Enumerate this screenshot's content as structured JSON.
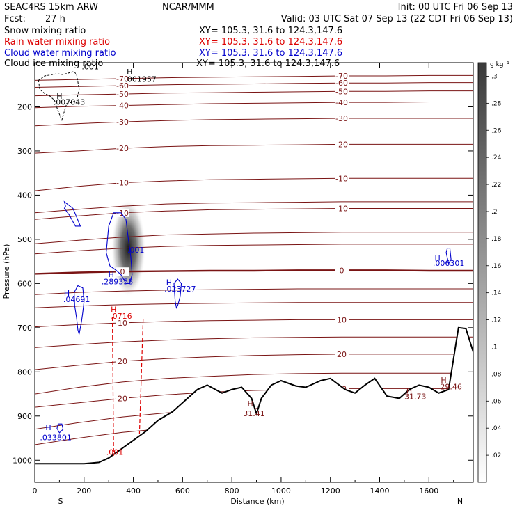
{
  "header": {
    "model": "SEAC4RS 15km ARW",
    "center": "NCAR/MMM",
    "init": "Init: 00 UTC Fri 06 Sep 13",
    "fcst_label": "Fcst:",
    "fcst_value": "27 h",
    "valid": "Valid: 03 UTC Sat 07 Sep 13 (22 CDT Fri 06 Sep 13)"
  },
  "fields": [
    {
      "name": "Snow mixing ratio",
      "xy": "XY=  105.3, 31.6 to 124.3,147.6",
      "color": "#000000"
    },
    {
      "name": "Rain water mixing ratio",
      "xy": "XY= 105.3, 31.6 to 124.3,147.6",
      "color": "#dd0000"
    },
    {
      "name": "Cloud water mixing ratio",
      "xy": "XY= 105.3, 31.6 to 124.3,147.6",
      "color": "#0000cc"
    },
    {
      "name": "Cloud ice mixing ratio",
      "xy": "XY= 105.3, 31.6 to 124.3,147.6",
      "color": "#000000"
    }
  ],
  "colors": {
    "temperature": "#7a1414",
    "zero_isotherm": "#7a1414",
    "terrain": "#000000",
    "rain": "#dd0000",
    "cloud_water": "#0000cc",
    "snow": "#000000"
  },
  "chart_data": {
    "type": "cross-section",
    "xlabel": "Distance (km)",
    "ylabel": "Pressure (hPa)",
    "xlim": [
      0,
      1780
    ],
    "ylim": [
      1050,
      100
    ],
    "x_ticks": [
      "0",
      "200",
      "400",
      "600",
      "800",
      "1000",
      "1200",
      "1400",
      "1600"
    ],
    "x_tick_values": [
      0,
      200,
      400,
      600,
      800,
      1000,
      1200,
      1400,
      1600
    ],
    "y_ticks": [
      "200",
      "300",
      "400",
      "500",
      "600",
      "700",
      "800",
      "900",
      "1000"
    ],
    "y_tick_values": [
      200,
      300,
      400,
      500,
      600,
      700,
      800,
      900,
      1000
    ],
    "end_labels": {
      "left": "S",
      "right": "N"
    },
    "colorbar": {
      "unit": "g kg⁻¹",
      "labels": [
        ".3",
        ".28",
        ".26",
        ".24",
        ".22",
        ".2",
        ".18",
        ".16",
        ".14",
        ".12",
        ".1",
        ".08",
        ".06",
        ".04",
        ".02"
      ],
      "min": 0,
      "max": 0.31
    },
    "temperature_isotherms": [
      {
        "label": "-70",
        "p": [
          140,
          138,
          136,
          134,
          133,
          132,
          131,
          130,
          130,
          129,
          129
        ]
      },
      {
        "label": "-60",
        "p": [
          156,
          154,
          152,
          150,
          149,
          148,
          147,
          146,
          146,
          145,
          145
        ]
      },
      {
        "label": "-50",
        "p": [
          175,
          173,
          171,
          169,
          168,
          167,
          166,
          165,
          165,
          164,
          164
        ]
      },
      {
        "label": "-40",
        "p": [
          202,
          199,
          197,
          195,
          193,
          192,
          191,
          190,
          190,
          189,
          189
        ]
      },
      {
        "label": "-30",
        "p": [
          243,
          238,
          234,
          231,
          229,
          228,
          227,
          226,
          226,
          226,
          226
        ]
      },
      {
        "label": "-20",
        "p": [
          305,
          300,
          294,
          290,
          288,
          287,
          286,
          285,
          285,
          285,
          285
        ]
      },
      {
        "label": "-10",
        "p": [
          390,
          380,
          372,
          368,
          365,
          364,
          363,
          362,
          362,
          362,
          362
        ]
      },
      {
        "label": "",
        "p": [
          440,
          432,
          425,
          420,
          418,
          417,
          416,
          415,
          415,
          415,
          415
        ]
      },
      {
        "label": "-10",
        "p": [
          455,
          447,
          440,
          436,
          433,
          432,
          431,
          430,
          430,
          430,
          430
        ]
      },
      {
        "label": "",
        "p": [
          510,
          502,
          495,
          490,
          488,
          486,
          485,
          484,
          484,
          484,
          484
        ]
      },
      {
        "label": "",
        "p": [
          533,
          526,
          520,
          516,
          514,
          513,
          512,
          511,
          511,
          511,
          511
        ]
      },
      {
        "label": "0",
        "p": [
          578,
          575,
          573,
          572,
          571,
          571,
          570,
          570,
          570,
          571,
          571
        ],
        "bold": true
      },
      {
        "label": "",
        "p": [
          625,
          620,
          617,
          615,
          614,
          613,
          612,
          612,
          612,
          612,
          612
        ]
      },
      {
        "label": "",
        "p": [
          655,
          651,
          648,
          646,
          645,
          644,
          643,
          643,
          643,
          643,
          643
        ]
      },
      {
        "label": "10",
        "p": [
          698,
          693,
          689,
          686,
          684,
          683,
          682,
          682,
          682,
          682,
          682
        ]
      },
      {
        "label": "",
        "p": [
          745,
          738,
          732,
          728,
          725,
          723,
          722,
          721,
          721,
          721,
          721
        ]
      },
      {
        "label": "20",
        "p": [
          795,
          785,
          776,
          770,
          766,
          763,
          761,
          760,
          760,
          760,
          760
        ]
      },
      {
        "label": "",
        "p": [
          850,
          835,
          823,
          815,
          810,
          806,
          804,
          803,
          803,
          803,
          803
        ]
      },
      {
        "label": "20",
        "p": [
          880,
          870,
          860,
          852,
          846,
          842,
          840,
          838,
          838,
          838,
          838
        ]
      },
      {
        "label": "",
        "p": [
          930,
          915,
          902,
          893,
          887,
          883,
          880,
          879,
          879,
          879,
          879
        ]
      },
      {
        "label": "",
        "p": [
          965,
          950,
          937,
          928,
          922,
          918,
          915,
          914,
          914,
          914,
          914
        ]
      }
    ],
    "isotherm_x": [
      0,
      178,
      356,
      534,
      712,
      890,
      1068,
      1246,
      1424,
      1602,
      1780
    ],
    "terrain": {
      "x": [
        0,
        100,
        200,
        260,
        300,
        350,
        400,
        450,
        500,
        560,
        620,
        660,
        700,
        760,
        800,
        840,
        880,
        900,
        920,
        960,
        1000,
        1060,
        1100,
        1160,
        1200,
        1260,
        1300,
        1340,
        1380,
        1430,
        1480,
        1520,
        1560,
        1600,
        1640,
        1680,
        1720,
        1750,
        1780
      ],
      "p": [
        1008,
        1008,
        1008,
        1005,
        995,
        975,
        955,
        935,
        910,
        890,
        860,
        840,
        830,
        848,
        840,
        835,
        860,
        895,
        860,
        830,
        820,
        832,
        835,
        820,
        815,
        840,
        848,
        830,
        815,
        855,
        860,
        840,
        830,
        835,
        848,
        840,
        700,
        702,
        755
      ]
    },
    "snow_contour": {
      "x": [
        15,
        40,
        60,
        90,
        115,
        145,
        160,
        170,
        180,
        170,
        150,
        130,
        120,
        110,
        95,
        80,
        60,
        40,
        20,
        15
      ],
      "p": [
        140,
        130,
        128,
        125,
        127,
        122,
        120,
        128,
        160,
        185,
        190,
        192,
        210,
        230,
        210,
        185,
        175,
        170,
        160,
        140
      ]
    },
    "rain_lines": [
      {
        "x": [
          315,
          320
        ],
        "p": [
          675,
          990
        ]
      },
      {
        "x": [
          440,
          425
        ],
        "p": [
          680,
          940
        ]
      }
    ],
    "cloud_water_contours": [
      {
        "x": [
          290,
          300,
          320,
          350,
          370,
          380,
          390,
          395,
          385,
          370,
          350,
          330,
          305,
          290
        ],
        "p": [
          530,
          470,
          440,
          440,
          455,
          500,
          540,
          580,
          600,
          600,
          580,
          570,
          560,
          530
        ]
      },
      {
        "x": [
          160,
          175,
          195,
          200,
          195,
          190,
          185,
          180,
          175,
          170,
          162,
          160
        ],
        "p": [
          620,
          605,
          610,
          640,
          665,
          685,
          700,
          715,
          705,
          680,
          650,
          620
        ]
      },
      {
        "x": [
          565,
          580,
          595,
          590,
          580,
          575,
          570,
          565
        ],
        "p": [
          600,
          590,
          600,
          630,
          650,
          655,
          640,
          600
        ]
      },
      {
        "x": [
          120,
          155,
          185,
          165,
          140,
          120,
          125,
          120
        ],
        "p": [
          415,
          430,
          470,
          470,
          445,
          430,
          425,
          415
        ]
      },
      {
        "x": [
          90,
          95,
          110,
          115,
          100,
          90
        ],
        "p": [
          928,
          918,
          918,
          930,
          938,
          928
        ]
      },
      {
        "x": [
          1670,
          1675,
          1685,
          1690,
          1680,
          1670
        ],
        "p": [
          530,
          520,
          520,
          545,
          555,
          530
        ]
      }
    ],
    "snow_field": {
      "x_center": 380,
      "p_center": 520,
      "x_sigma": 35,
      "p_sigma": 55,
      "peak": 0.31
    },
    "annotations": [
      {
        "text": "H",
        "x": 100,
        "p": 182,
        "color": "#000000"
      },
      {
        "text": ".007043",
        "x": 140,
        "p": 195,
        "color": "#000000"
      },
      {
        "text": "H",
        "x": 385,
        "p": 127,
        "color": "#000000"
      },
      {
        "text": ".001957",
        "x": 430,
        "p": 143,
        "color": "#000000"
      },
      {
        "text": ".001",
        "x": 225,
        "p": 115,
        "color": "#000000"
      },
      {
        "text": "H",
        "x": 310,
        "p": 585,
        "color": "#0000cc"
      },
      {
        "text": ".289358",
        "x": 335,
        "p": 602,
        "color": "#0000cc"
      },
      {
        "text": "H",
        "x": 130,
        "p": 628,
        "color": "#0000cc"
      },
      {
        "text": ".04691",
        "x": 170,
        "p": 642,
        "color": "#0000cc"
      },
      {
        "text": "H",
        "x": 545,
        "p": 603,
        "color": "#0000cc"
      },
      {
        "text": ".023727",
        "x": 590,
        "p": 618,
        "color": "#0000cc"
      },
      {
        "text": "H",
        "x": 1635,
        "p": 548,
        "color": "#0000cc"
      },
      {
        "text": ".006301",
        "x": 1680,
        "p": 560,
        "color": "#0000cc"
      },
      {
        "text": "H",
        "x": 55,
        "p": 932,
        "color": "#0000cc"
      },
      {
        "text": ".033801",
        "x": 85,
        "p": 955,
        "color": "#0000cc"
      },
      {
        "text": ".001",
        "x": 410,
        "p": 530,
        "color": "#0000cc"
      },
      {
        "text": "H",
        "x": 320,
        "p": 665,
        "color": "#dd0000"
      },
      {
        "text": ".0716",
        "x": 350,
        "p": 680,
        "color": "#dd0000"
      },
      {
        "text": ".001",
        "x": 325,
        "p": 988,
        "color": "#dd0000"
      },
      {
        "text": "H",
        "x": 875,
        "p": 878,
        "color": "#7a1414"
      },
      {
        "text": "31.41",
        "x": 890,
        "p": 900,
        "color": "#7a1414"
      },
      {
        "text": "H",
        "x": 1520,
        "p": 848,
        "color": "#7a1414"
      },
      {
        "text": "31.73",
        "x": 1545,
        "p": 862,
        "color": "#7a1414"
      },
      {
        "text": "H",
        "x": 1660,
        "p": 825,
        "color": "#7a1414"
      },
      {
        "text": "29.46",
        "x": 1690,
        "p": 840,
        "color": "#7a1414"
      }
    ]
  }
}
